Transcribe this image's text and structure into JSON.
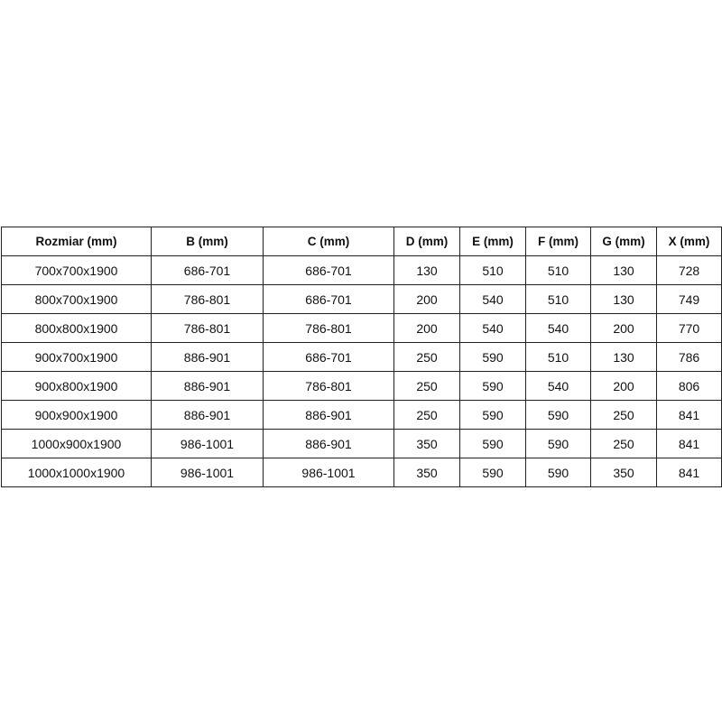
{
  "table": {
    "headers": [
      "Rozmiar (mm)",
      "B (mm)",
      "C (mm)",
      "D (mm)",
      "E (mm)",
      "F (mm)",
      "G (mm)",
      "X (mm)"
    ],
    "rows": [
      [
        "700x700x1900",
        "686-701",
        "686-701",
        "130",
        "510",
        "510",
        "130",
        "728"
      ],
      [
        "800x700x1900",
        "786-801",
        "686-701",
        "200",
        "540",
        "510",
        "130",
        "749"
      ],
      [
        "800x800x1900",
        "786-801",
        "786-801",
        "200",
        "540",
        "540",
        "200",
        "770"
      ],
      [
        "900x700x1900",
        "886-901",
        "686-701",
        "250",
        "590",
        "510",
        "130",
        "786"
      ],
      [
        "900x800x1900",
        "886-901",
        "786-801",
        "250",
        "590",
        "540",
        "200",
        "806"
      ],
      [
        "900x900x1900",
        "886-901",
        "886-901",
        "250",
        "590",
        "590",
        "250",
        "841"
      ],
      [
        "1000x900x1900",
        "986-1001",
        "886-901",
        "350",
        "590",
        "590",
        "250",
        "841"
      ],
      [
        "1000x1000x1900",
        "986-1001",
        "986-1001",
        "350",
        "590",
        "590",
        "350",
        "841"
      ]
    ]
  }
}
